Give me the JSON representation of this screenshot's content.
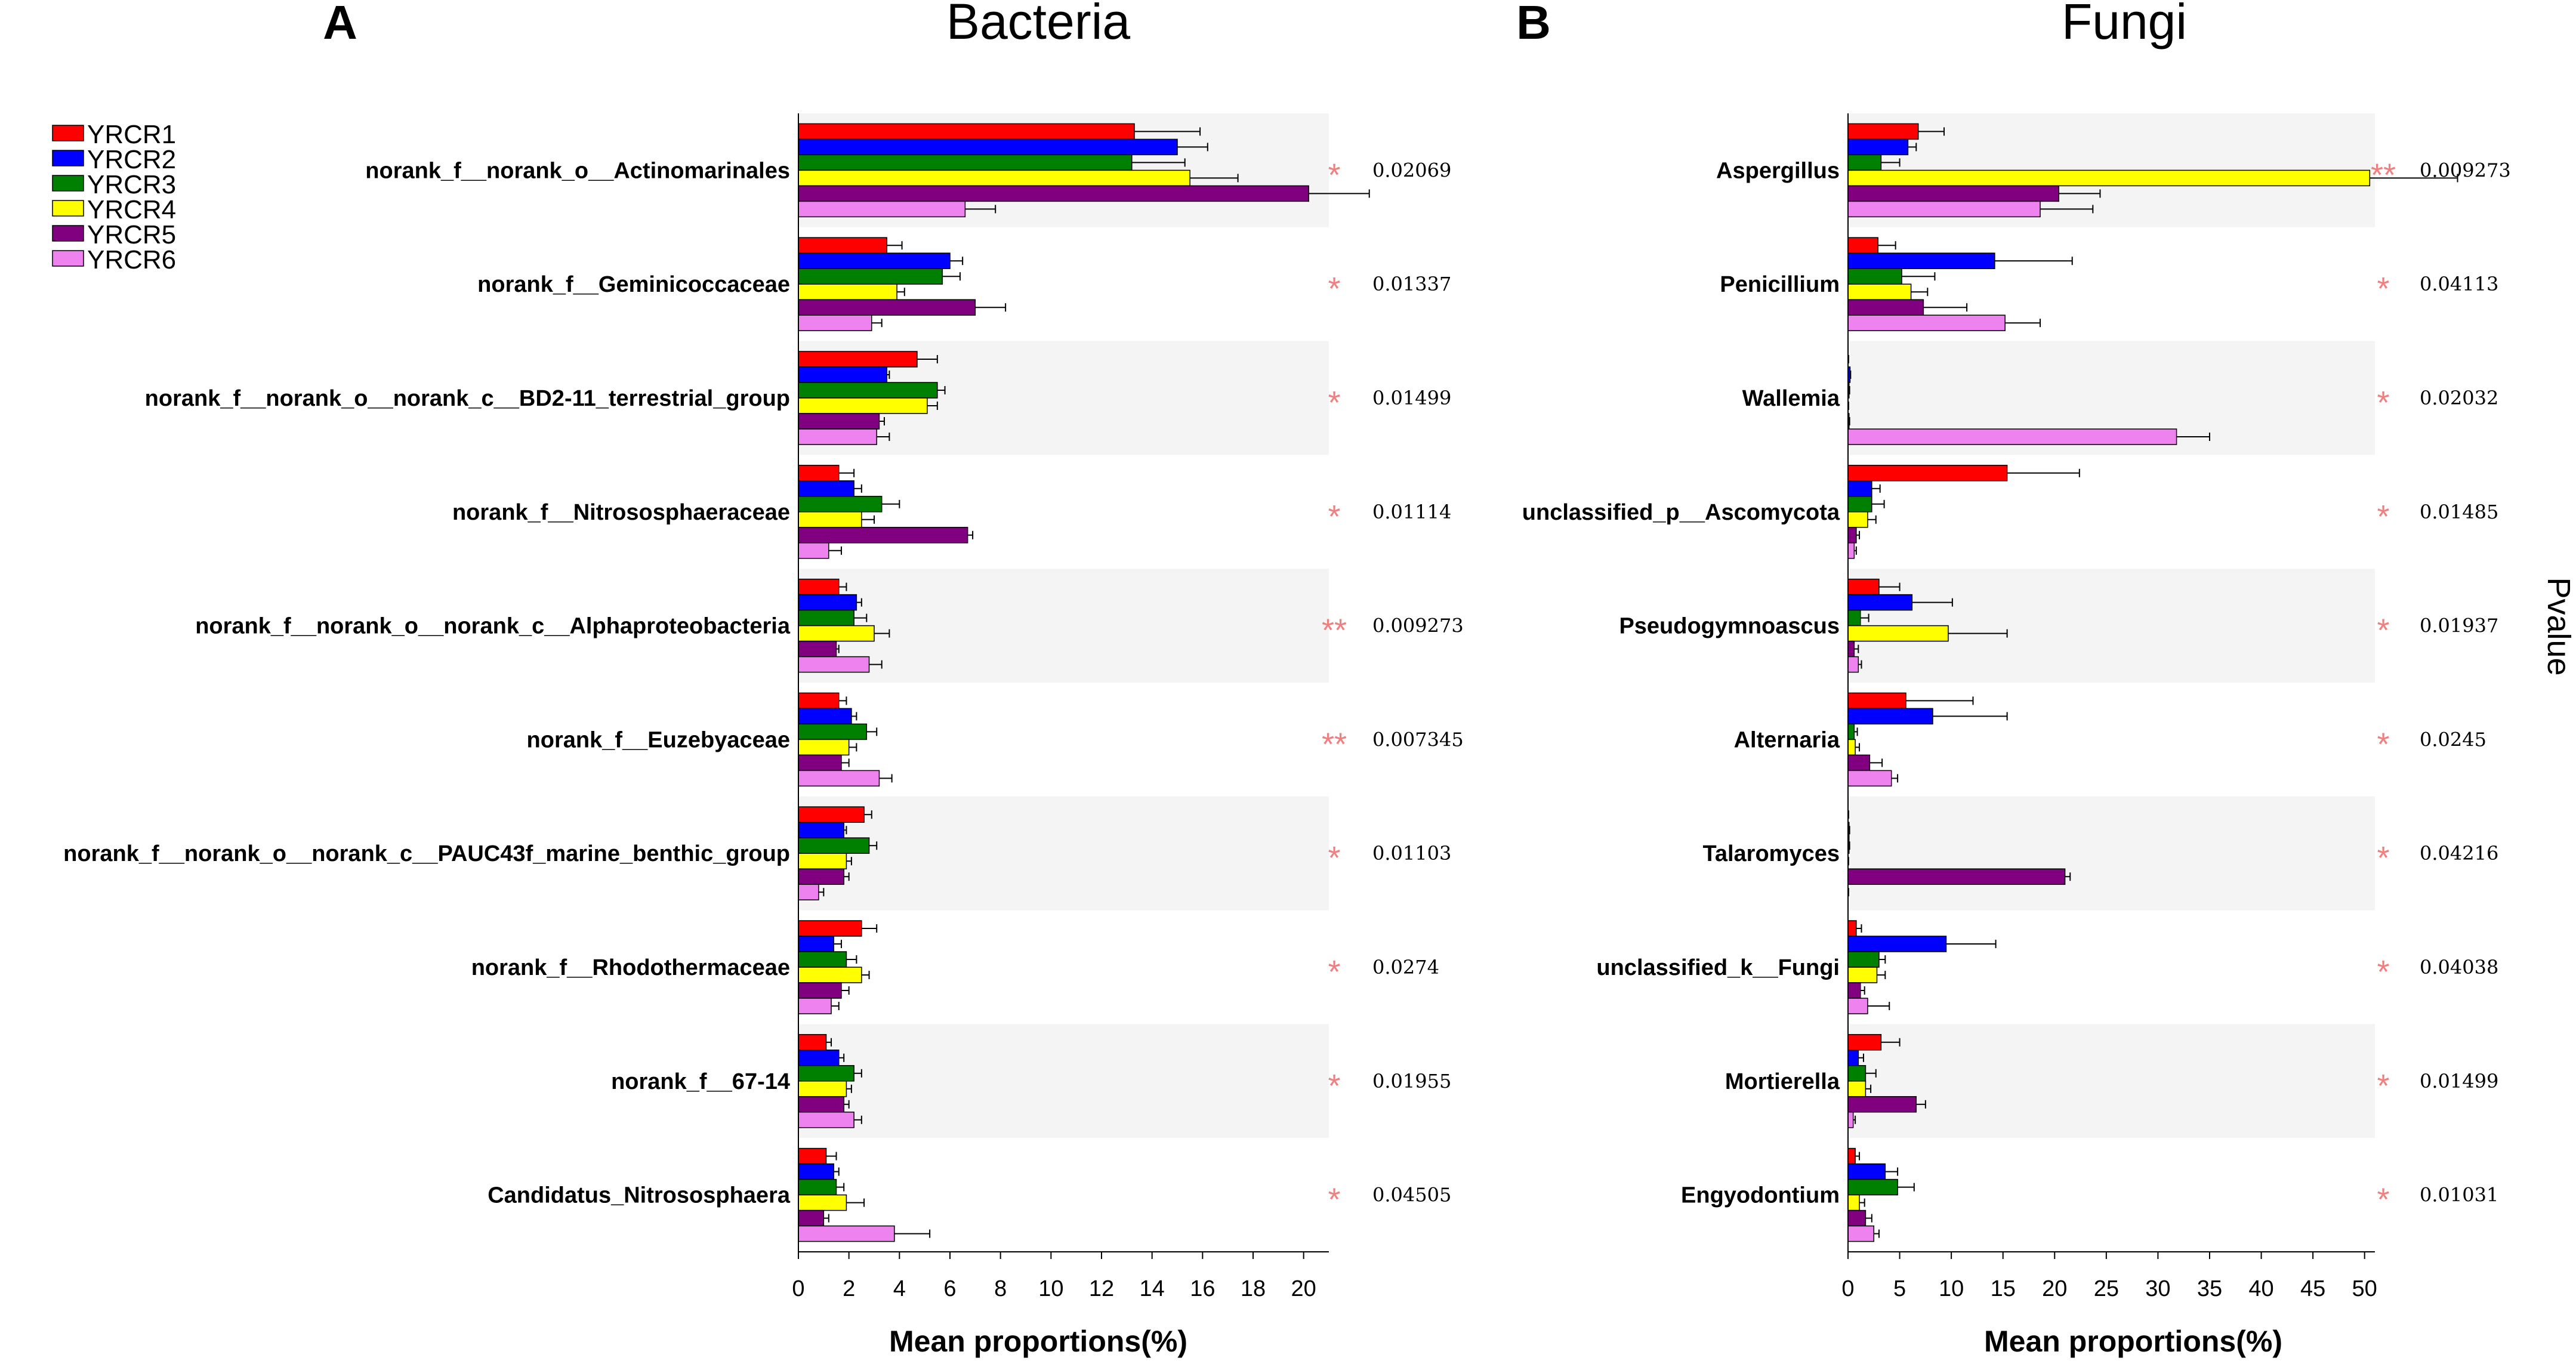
{
  "legend": {
    "items": [
      "YRCR1",
      "YRCR2",
      "YRCR3",
      "YRCR4",
      "YRCR5",
      "YRCR6"
    ],
    "colors": [
      "#ff0000",
      "#0000ff",
      "#008000",
      "#ffff00",
      "#800080",
      "#ee82ee"
    ]
  },
  "side_label": "Pvalue",
  "chart_data": [
    {
      "type": "bar",
      "orientation": "horizontal",
      "panel_letter": "A",
      "title": "Bacteria",
      "xlabel": "Mean proportions(%)",
      "xlim": [
        0,
        21
      ],
      "xticks": [
        "0",
        "2",
        "4",
        "6",
        "8",
        "10",
        "12",
        "14",
        "16",
        "18",
        "20"
      ],
      "categories": [
        "norank_f__norank_o__Actinomarinales",
        "norank_f__Geminicoccaceae",
        "norank_f__norank_o__norank_c__BD2-11_terrestrial_group",
        "norank_f__Nitrososphaeraceae",
        "norank_f__norank_o__norank_c__Alphaproteobacteria",
        "norank_f__Euzebyaceae",
        "norank_f__norank_o__norank_c__PAUC43f_marine_benthic_group",
        "norank_f__Rhodothermaceae",
        "norank_f__67-14",
        "Candidatus_Nitrososphaera"
      ],
      "series": [
        {
          "name": "YRCR1",
          "values": [
            13.3,
            3.5,
            4.7,
            1.6,
            1.6,
            1.6,
            2.6,
            2.5,
            1.1,
            1.1
          ],
          "errors": [
            2.6,
            0.6,
            0.8,
            0.6,
            0.3,
            0.3,
            0.3,
            0.6,
            0.2,
            0.4
          ]
        },
        {
          "name": "YRCR2",
          "values": [
            15.0,
            6.0,
            3.5,
            2.2,
            2.3,
            2.1,
            1.8,
            1.4,
            1.6,
            1.4
          ],
          "errors": [
            1.2,
            0.5,
            0.1,
            0.3,
            0.2,
            0.2,
            0.1,
            0.3,
            0.2,
            0.2
          ]
        },
        {
          "name": "YRCR3",
          "values": [
            13.2,
            5.7,
            5.5,
            3.3,
            2.2,
            2.7,
            2.8,
            1.9,
            2.2,
            1.5
          ],
          "errors": [
            2.1,
            0.7,
            0.3,
            0.7,
            0.5,
            0.4,
            0.3,
            0.4,
            0.3,
            0.3
          ]
        },
        {
          "name": "YRCR4",
          "values": [
            15.5,
            3.9,
            5.1,
            2.5,
            3.0,
            2.0,
            1.9,
            2.5,
            1.9,
            1.9
          ],
          "errors": [
            1.9,
            0.3,
            0.4,
            0.5,
            0.6,
            0.3,
            0.2,
            0.3,
            0.2,
            0.7
          ]
        },
        {
          "name": "YRCR5",
          "values": [
            20.2,
            7.0,
            3.2,
            6.7,
            1.5,
            1.7,
            1.8,
            1.7,
            1.8,
            1.0
          ],
          "errors": [
            2.4,
            1.2,
            0.2,
            0.2,
            0.1,
            0.3,
            0.2,
            0.3,
            0.2,
            0.2
          ]
        },
        {
          "name": "YRCR6",
          "values": [
            6.6,
            2.9,
            3.1,
            1.2,
            2.8,
            3.2,
            0.8,
            1.3,
            2.2,
            3.8
          ],
          "errors": [
            1.2,
            0.4,
            0.5,
            0.5,
            0.5,
            0.5,
            0.2,
            0.3,
            0.3,
            1.4
          ]
        }
      ],
      "significance": [
        "*",
        "*",
        "*",
        "*",
        "**",
        "**",
        "*",
        "*",
        "*",
        "*"
      ],
      "pvalues": [
        "0.02069",
        "0.01337",
        "0.01499",
        "0.01114",
        "0.009273",
        "0.007345",
        "0.01103",
        "0.0274",
        "0.01955",
        "0.04505"
      ]
    },
    {
      "type": "bar",
      "orientation": "horizontal",
      "panel_letter": "B",
      "title": "Fungi",
      "xlabel": "Mean proportions(%)",
      "xlim": [
        0,
        51
      ],
      "xticks": [
        "0",
        "5",
        "10",
        "15",
        "20",
        "25",
        "30",
        "35",
        "40",
        "45",
        "50"
      ],
      "categories": [
        "Aspergillus",
        "Penicillium",
        "Wallemia",
        "unclassified_p__Ascomycota",
        "Pseudogymnoascus",
        "Alternaria",
        "Talaromyces",
        "unclassified_k__Fungi",
        "Mortierella",
        "Engyodontium"
      ],
      "series": [
        {
          "name": "YRCR1",
          "values": [
            6.8,
            2.9,
            0.0,
            15.4,
            3.0,
            5.6,
            0.0,
            0.8,
            3.2,
            0.7
          ],
          "errors": [
            2.5,
            1.7,
            0.05,
            7.0,
            2.0,
            6.5,
            0.05,
            0.5,
            1.8,
            0.4
          ]
        },
        {
          "name": "YRCR2",
          "values": [
            5.8,
            14.2,
            0.2,
            2.3,
            6.2,
            8.2,
            0.1,
            9.5,
            1.0,
            3.6
          ],
          "errors": [
            0.8,
            7.5,
            0.05,
            0.8,
            3.9,
            7.2,
            0.05,
            4.8,
            0.5,
            1.2
          ]
        },
        {
          "name": "YRCR3",
          "values": [
            3.2,
            5.2,
            0.1,
            2.3,
            1.2,
            0.6,
            0.1,
            3.0,
            1.7,
            4.8
          ],
          "errors": [
            1.8,
            3.2,
            0.05,
            1.2,
            0.8,
            0.3,
            0.05,
            0.6,
            1.0,
            1.6
          ]
        },
        {
          "name": "YRCR4",
          "values": [
            50.5,
            6.1,
            0.0,
            1.9,
            9.7,
            0.7,
            0.0,
            2.8,
            1.7,
            1.1
          ],
          "errors": [
            8.5,
            1.6,
            0.05,
            0.8,
            5.7,
            0.4,
            0.05,
            0.8,
            0.5,
            0.5
          ]
        },
        {
          "name": "YRCR5",
          "values": [
            20.4,
            7.3,
            0.1,
            0.8,
            0.6,
            2.1,
            21.0,
            1.2,
            6.6,
            1.7
          ],
          "errors": [
            4.0,
            4.2,
            0.05,
            0.3,
            0.4,
            1.2,
            0.5,
            0.4,
            0.9,
            0.6
          ]
        },
        {
          "name": "YRCR6",
          "values": [
            18.6,
            15.2,
            31.8,
            0.6,
            1.0,
            4.2,
            0.0,
            1.9,
            0.5,
            2.5
          ],
          "errors": [
            5.1,
            3.4,
            3.2,
            0.2,
            0.3,
            0.6,
            0.05,
            2.1,
            0.2,
            0.5
          ]
        }
      ],
      "significance": [
        "**",
        "*",
        "*",
        "*",
        "*",
        "*",
        "*",
        "*",
        "*",
        "*"
      ],
      "pvalues": [
        "0.009273",
        "0.04113",
        "0.02032",
        "0.01485",
        "0.01937",
        "0.0245",
        "0.04216",
        "0.04038",
        "0.01499",
        "0.01031"
      ]
    }
  ]
}
